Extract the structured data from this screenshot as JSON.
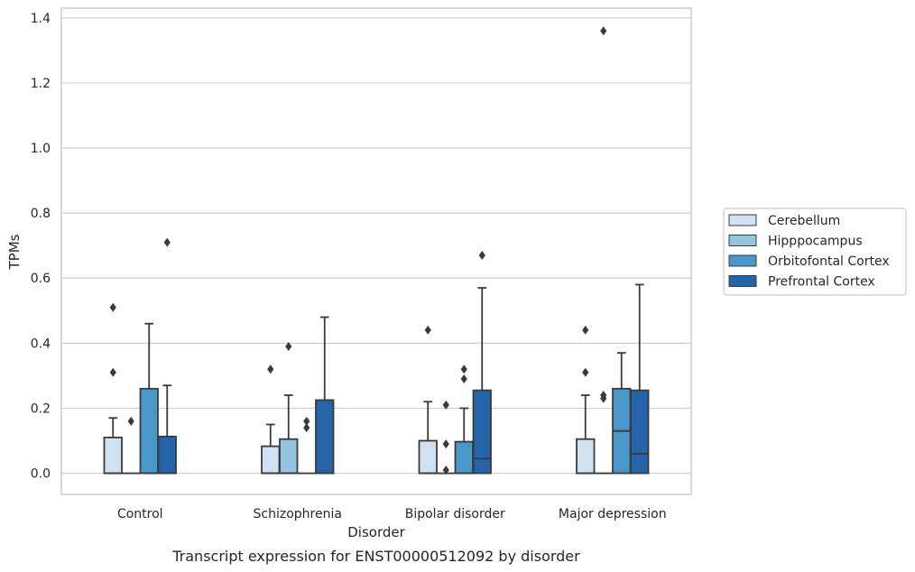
{
  "chart_data": {
    "type": "box",
    "title": "",
    "caption": "Transcript expression for ENST00000512092 by disorder",
    "xlabel": "Disorder",
    "ylabel": "TPMs",
    "ylim": [
      -0.065,
      1.43
    ],
    "yticks": [
      "0.0",
      "0.2",
      "0.4",
      "0.6",
      "0.8",
      "1.0",
      "1.2",
      "1.4"
    ],
    "ytick_values": [
      0,
      0.2,
      0.4,
      0.6,
      0.8,
      1.0,
      1.2,
      1.4
    ],
    "grid": "horizontal",
    "legend_position": "right",
    "categories": [
      "Control",
      "Schizophrenia",
      "Bipolar disorder",
      "Major depression"
    ],
    "series": [
      {
        "name": "Cerebellum",
        "color": "#d0e1f2",
        "boxes": [
          {
            "q1": 0,
            "median": 0,
            "q3": 0.11,
            "whisker_low": 0,
            "whisker_high": 0.17,
            "outliers": [
              0.31,
              0.51
            ]
          },
          {
            "q1": 0,
            "median": 0,
            "q3": 0.083,
            "whisker_low": 0,
            "whisker_high": 0.15,
            "outliers": [
              0.32
            ]
          },
          {
            "q1": 0,
            "median": 0,
            "q3": 0.1,
            "whisker_low": 0,
            "whisker_high": 0.22,
            "outliers": [
              0.44
            ]
          },
          {
            "q1": 0,
            "median": 0,
            "q3": 0.105,
            "whisker_low": 0,
            "whisker_high": 0.24,
            "outliers": [
              0.31,
              0.44
            ]
          }
        ]
      },
      {
        "name": "Hipppocampus",
        "color": "#94c4df",
        "boxes": [
          {
            "q1": 0,
            "median": 0,
            "q3": 0,
            "whisker_low": 0,
            "whisker_high": 0,
            "outliers": [
              0.16
            ]
          },
          {
            "q1": 0,
            "median": 0,
            "q3": 0.105,
            "whisker_low": 0,
            "whisker_high": 0.24,
            "outliers": [
              0.39
            ]
          },
          {
            "q1": 0,
            "median": 0,
            "q3": 0,
            "whisker_low": 0,
            "whisker_high": 0,
            "outliers": [
              0.01,
              0.09,
              0.21
            ]
          },
          {
            "q1": 0,
            "median": 0,
            "q3": 0,
            "whisker_low": 0,
            "whisker_high": 0,
            "outliers": [
              0.23,
              0.24,
              1.36
            ]
          }
        ]
      },
      {
        "name": "Orbitofontal Cortex",
        "color": "#4a98c9",
        "boxes": [
          {
            "q1": 0,
            "median": 0,
            "q3": 0.26,
            "whisker_low": 0,
            "whisker_high": 0.46,
            "outliers": []
          },
          {
            "q1": 0,
            "median": 0,
            "q3": 0,
            "whisker_low": 0,
            "whisker_high": 0,
            "outliers": [
              0.14,
              0.16
            ]
          },
          {
            "q1": 0,
            "median": 0,
            "q3": 0.097,
            "whisker_low": 0,
            "whisker_high": 0.2,
            "outliers": [
              0.29,
              0.32
            ]
          },
          {
            "q1": 0,
            "median": 0.13,
            "q3": 0.26,
            "whisker_low": 0,
            "whisker_high": 0.37,
            "outliers": []
          }
        ]
      },
      {
        "name": "Prefrontal Cortex",
        "color": "#2464a8",
        "boxes": [
          {
            "q1": 0,
            "median": 0,
            "q3": 0.113,
            "whisker_low": 0,
            "whisker_high": 0.27,
            "outliers": [
              0.71
            ]
          },
          {
            "q1": 0,
            "median": 0,
            "q3": 0.225,
            "whisker_low": 0,
            "whisker_high": 0.48,
            "outliers": []
          },
          {
            "q1": 0,
            "median": 0.045,
            "q3": 0.255,
            "whisker_low": 0,
            "whisker_high": 0.57,
            "outliers": [
              0.67
            ]
          },
          {
            "q1": 0,
            "median": 0.06,
            "q3": 0.255,
            "whisker_low": 0,
            "whisker_high": 0.58,
            "outliers": []
          }
        ]
      }
    ]
  }
}
